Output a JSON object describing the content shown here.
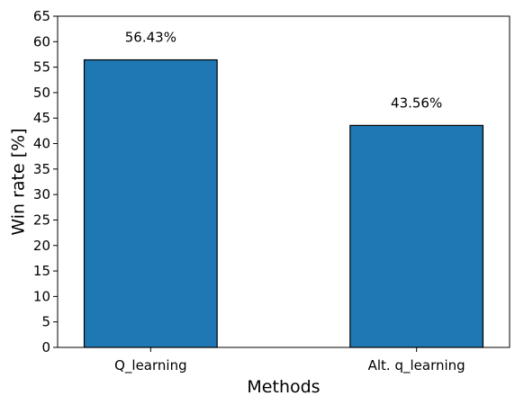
{
  "chart_data": {
    "type": "bar",
    "title": "",
    "xlabel": "Methods",
    "ylabel": "Win rate [%]",
    "categories": [
      "Q_learning",
      "Alt. q_learning"
    ],
    "values": [
      56.43,
      43.56
    ],
    "data_labels": [
      "56.43%",
      "43.56%"
    ],
    "ylim": [
      0,
      65
    ],
    "yticks": [
      0,
      5,
      10,
      15,
      20,
      25,
      30,
      35,
      40,
      45,
      50,
      55,
      60,
      65
    ],
    "grid": false,
    "legend": "none",
    "colors": {
      "bar": "#1f77b4",
      "bar_edge": "#000000",
      "axes": "#000000"
    }
  }
}
